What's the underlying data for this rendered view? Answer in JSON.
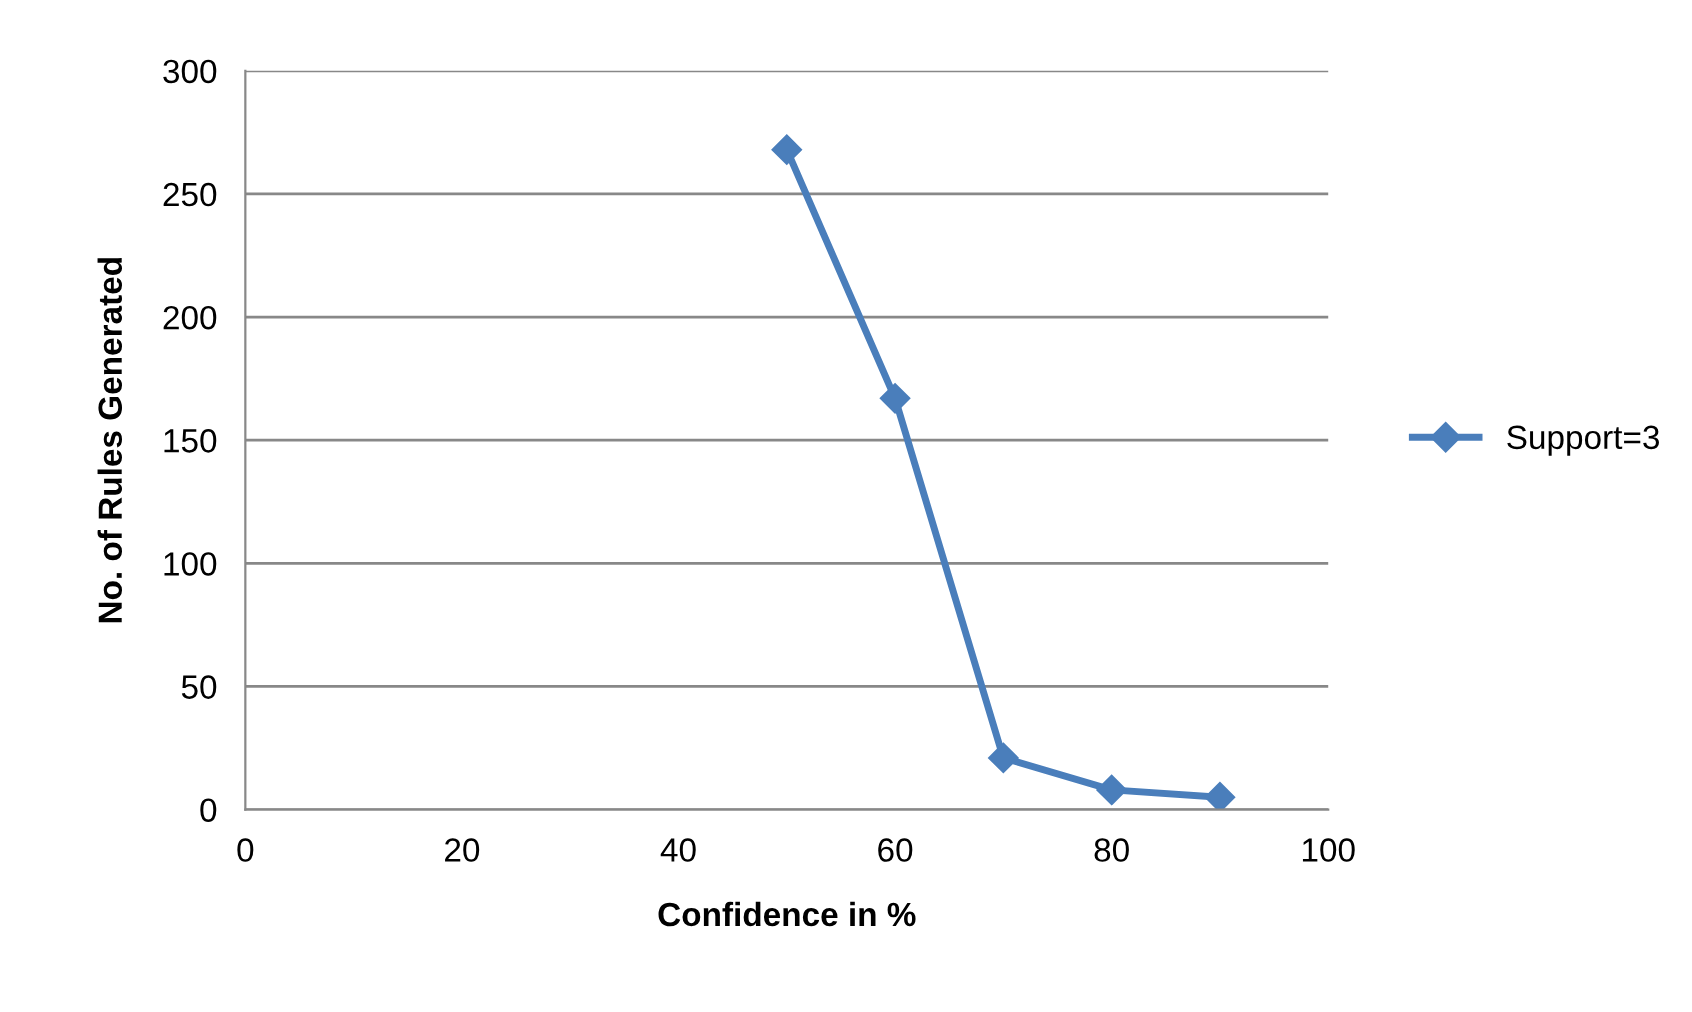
{
  "chart_data": {
    "type": "line",
    "xlabel": "Confidence in %",
    "ylabel": "No. of Rules Generated",
    "x": [
      50,
      60,
      70,
      80,
      90
    ],
    "series": [
      {
        "name": "Support=3",
        "color": "#4a7ebb",
        "values": [
          268,
          167,
          21,
          8,
          5
        ]
      }
    ],
    "xlim": [
      0,
      100
    ],
    "xticks": [
      0,
      20,
      40,
      60,
      80,
      100
    ],
    "ylim": [
      0,
      300
    ],
    "yticks": [
      0,
      50,
      100,
      150,
      200,
      250,
      300
    ],
    "grid": "y",
    "legend": "right",
    "marker": "diamond",
    "line_style": "solid"
  }
}
